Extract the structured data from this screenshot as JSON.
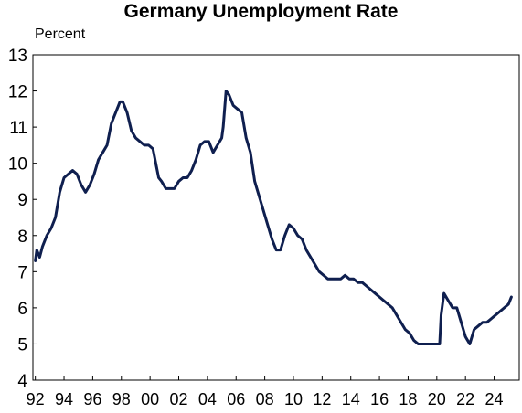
{
  "chart_data": {
    "type": "line",
    "title": "Germany Unemployment Rate",
    "ylabel": "Percent",
    "xlabel": "",
    "ylim": [
      4,
      13
    ],
    "xlim": [
      1991.83,
      2025.75
    ],
    "yticks": [
      4,
      5,
      6,
      7,
      8,
      9,
      10,
      11,
      12,
      13
    ],
    "xticks": [
      {
        "year": 1992,
        "label": "92"
      },
      {
        "year": 1994,
        "label": "94"
      },
      {
        "year": 1996,
        "label": "96"
      },
      {
        "year": 1998,
        "label": "98"
      },
      {
        "year": 2000,
        "label": "00"
      },
      {
        "year": 2002,
        "label": "02"
      },
      {
        "year": 2004,
        "label": "04"
      },
      {
        "year": 2006,
        "label": "06"
      },
      {
        "year": 2008,
        "label": "08"
      },
      {
        "year": 2010,
        "label": "10"
      },
      {
        "year": 2012,
        "label": "12"
      },
      {
        "year": 2014,
        "label": "14"
      },
      {
        "year": 2016,
        "label": "16"
      },
      {
        "year": 2018,
        "label": "18"
      },
      {
        "year": 2020,
        "label": "20"
      },
      {
        "year": 2022,
        "label": "22"
      },
      {
        "year": 2024,
        "label": "24"
      }
    ],
    "grid": false,
    "series": [
      {
        "name": "",
        "color": "#0f1f4f",
        "x": [
          1992.0,
          1992.1,
          1992.3,
          1992.5,
          1992.8,
          1993.1,
          1993.4,
          1993.7,
          1994.0,
          1994.3,
          1994.6,
          1994.9,
          1995.2,
          1995.5,
          1995.8,
          1996.1,
          1996.4,
          1996.7,
          1997.0,
          1997.3,
          1997.6,
          1997.9,
          1998.1,
          1998.4,
          1998.7,
          1999.0,
          1999.3,
          1999.6,
          1999.9,
          2000.2,
          2000.4,
          2000.6,
          2000.8,
          2001.1,
          2001.4,
          2001.7,
          2002.0,
          2002.3,
          2002.6,
          2002.9,
          2003.2,
          2003.5,
          2003.8,
          2004.1,
          2004.4,
          2004.7,
          2005.0,
          2005.1,
          2005.3,
          2005.5,
          2005.8,
          2006.1,
          2006.4,
          2006.7,
          2007.0,
          2007.3,
          2007.6,
          2007.9,
          2008.2,
          2008.5,
          2008.8,
          2009.1,
          2009.4,
          2009.7,
          2010.0,
          2010.3,
          2010.6,
          2010.9,
          2011.2,
          2011.5,
          2011.8,
          2012.1,
          2012.4,
          2012.7,
          2013.0,
          2013.3,
          2013.6,
          2013.9,
          2014.2,
          2014.5,
          2014.8,
          2015.1,
          2015.4,
          2015.7,
          2016.0,
          2016.3,
          2016.6,
          2016.9,
          2017.2,
          2017.5,
          2017.8,
          2018.1,
          2018.4,
          2018.7,
          2019.0,
          2019.3,
          2019.6,
          2019.9,
          2020.2,
          2020.3,
          2020.5,
          2020.8,
          2021.1,
          2021.4,
          2021.7,
          2022.0,
          2022.3,
          2022.6,
          2022.9,
          2023.2,
          2023.5,
          2023.8,
          2024.1,
          2024.4,
          2024.7,
          2025.0,
          2025.2
        ],
        "y": [
          7.3,
          7.6,
          7.4,
          7.7,
          8.0,
          8.2,
          8.5,
          9.2,
          9.6,
          9.7,
          9.8,
          9.7,
          9.4,
          9.2,
          9.4,
          9.7,
          10.1,
          10.3,
          10.5,
          11.1,
          11.4,
          11.7,
          11.7,
          11.4,
          10.9,
          10.7,
          10.6,
          10.5,
          10.5,
          10.4,
          10.0,
          9.6,
          9.5,
          9.3,
          9.3,
          9.3,
          9.5,
          9.6,
          9.6,
          9.8,
          10.1,
          10.5,
          10.6,
          10.6,
          10.3,
          10.5,
          10.7,
          11.0,
          12.0,
          11.9,
          11.6,
          11.5,
          11.4,
          10.7,
          10.3,
          9.5,
          9.1,
          8.7,
          8.3,
          7.9,
          7.6,
          7.6,
          8.0,
          8.3,
          8.2,
          8.0,
          7.9,
          7.6,
          7.4,
          7.2,
          7.0,
          6.9,
          6.8,
          6.8,
          6.8,
          6.8,
          6.9,
          6.8,
          6.8,
          6.7,
          6.7,
          6.6,
          6.5,
          6.4,
          6.3,
          6.2,
          6.1,
          6.0,
          5.8,
          5.6,
          5.4,
          5.3,
          5.1,
          5.0,
          5.0,
          5.0,
          5.0,
          5.0,
          5.0,
          5.8,
          6.4,
          6.2,
          6.0,
          6.0,
          5.6,
          5.2,
          5.0,
          5.4,
          5.5,
          5.6,
          5.6,
          5.7,
          5.8,
          5.9,
          6.0,
          6.1,
          6.3
        ]
      }
    ]
  }
}
